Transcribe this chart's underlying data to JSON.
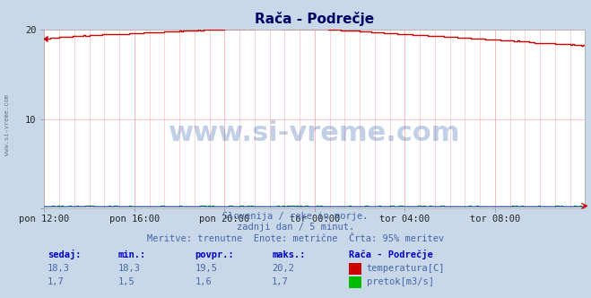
{
  "title": "Rača - Podrečje",
  "bg_color": "#c8d8e8",
  "plot_bg_color": "#ffffff",
  "grid_color": "#ffb0b0",
  "x_labels": [
    "pon 12:00",
    "pon 16:00",
    "pon 20:00",
    "tor 00:00",
    "tor 04:00",
    "tor 08:00"
  ],
  "x_ticks": [
    0,
    48,
    96,
    144,
    192,
    240
  ],
  "x_max": 288,
  "y_min": 0,
  "y_max": 20,
  "y_ticks": [
    0,
    10,
    20
  ],
  "temp_color": "#cc0000",
  "flow_color": "#00bb00",
  "flow_blue_color": "#4444ff",
  "dotted_color": "#ff7777",
  "title_color": "#000066",
  "subtitle_color": "#4466aa",
  "label_color": "#0000cc",
  "watermark_color": "#2255aa",
  "temp_sedaj": "18,3",
  "temp_min": "18,3",
  "temp_povpr": "19,5",
  "temp_maks": "20,2",
  "flow_sedaj": "1,7",
  "flow_min": "1,5",
  "flow_povpr": "1,6",
  "flow_maks": "1,7",
  "subtitle1": "Slovenija / reke in morje.",
  "subtitle2": "zadnji dan / 5 minut.",
  "subtitle3": "Meritve: trenutne  Enote: metrične  Črta: 95% meritev",
  "legend_station": "Rača - Podrečje",
  "legend_temp": "temperatura[C]",
  "legend_flow": "pretok[m3/s]",
  "col_sedaj": "sedaj:",
  "col_min": "min.:",
  "col_povpr": "povpr.:",
  "col_maks": "maks.:"
}
